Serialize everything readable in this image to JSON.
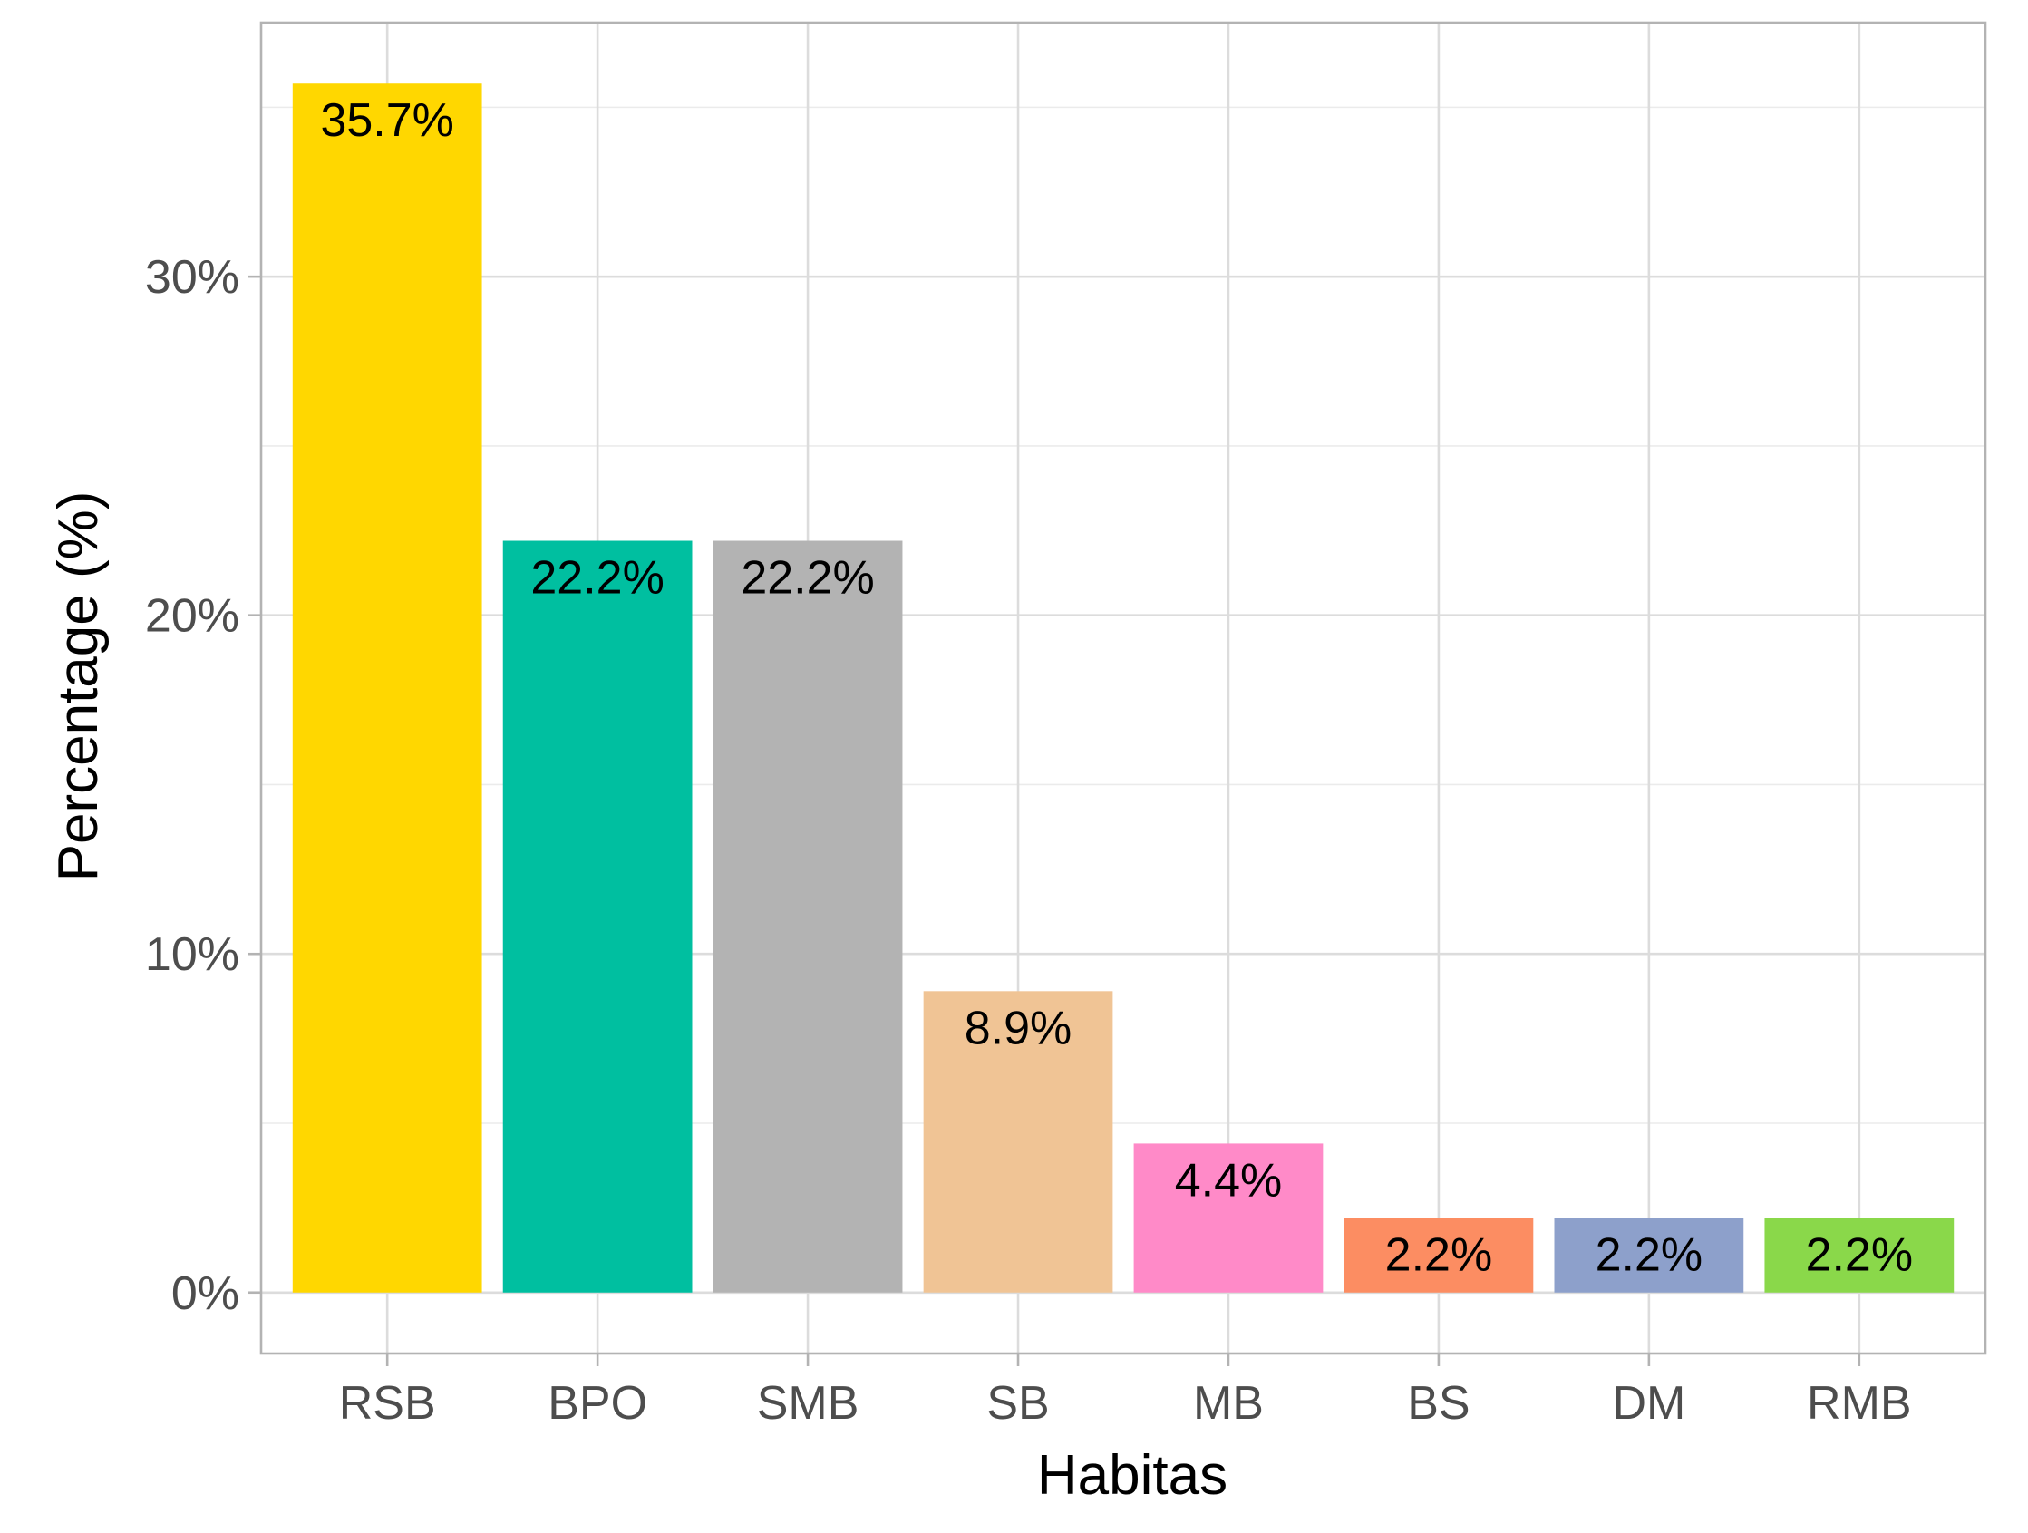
{
  "chart_data": {
    "type": "bar",
    "categories": [
      "RSB",
      "BPO",
      "SMB",
      "SB",
      "MB",
      "BS",
      "DM",
      "RMB"
    ],
    "values": [
      35.7,
      22.2,
      22.2,
      8.9,
      4.4,
      2.2,
      2.2,
      2.2
    ],
    "data_labels": [
      "35.7%",
      "22.2%",
      "22.2%",
      "8.9%",
      "4.4%",
      "2.2%",
      "2.2%",
      "2.2%"
    ],
    "colors": [
      "#FFD700",
      "#00BFA0",
      "#B3B3B3",
      "#F0C495",
      "#FF8AC8",
      "#FC8D62",
      "#8DA0CB",
      "#8AD84A"
    ],
    "xlabel": "Habitas",
    "ylabel": "Percentage (%)",
    "yticks": [
      0,
      10,
      20,
      30
    ],
    "ytick_labels": [
      "0%",
      "10%",
      "20%",
      "30%"
    ],
    "ylim": [
      -1.8,
      37.5
    ],
    "grid": true,
    "legend": "none"
  }
}
